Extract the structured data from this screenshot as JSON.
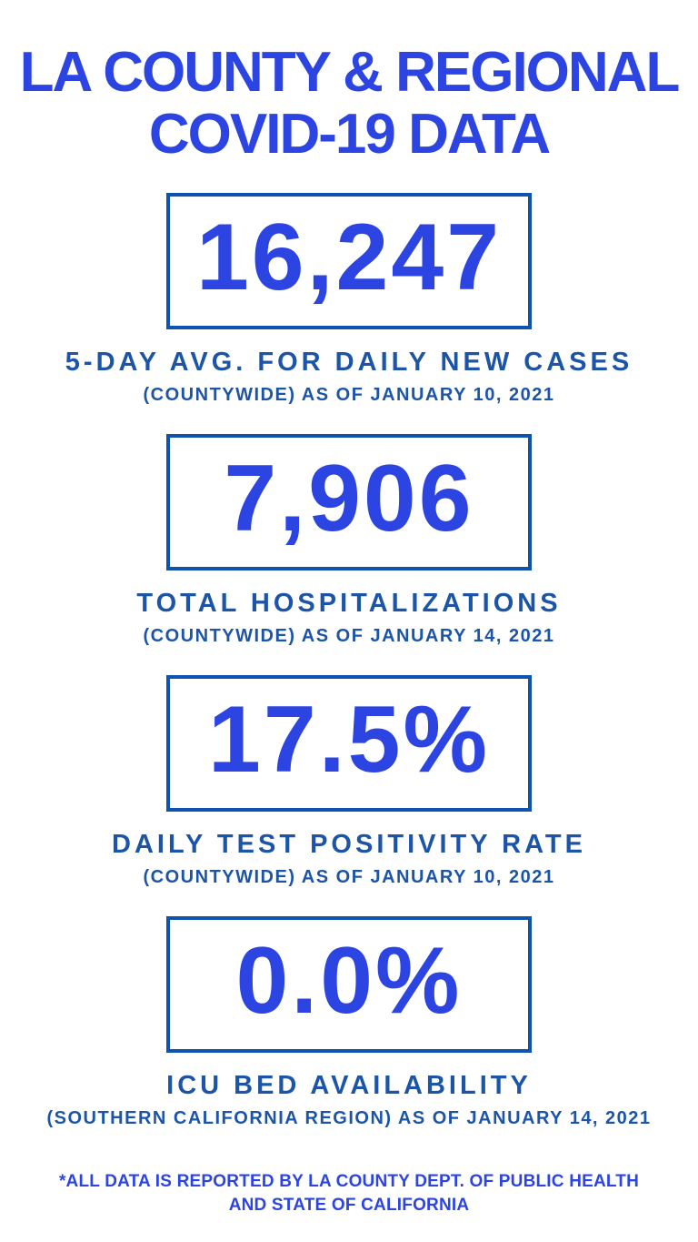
{
  "title": {
    "line1": "LA COUNTY & REGIONAL",
    "line2": "COVID-19 DATA"
  },
  "stats": [
    {
      "value": "16,247",
      "label": "5-DAY AVG. FOR DAILY NEW CASES",
      "detail": "(COUNTYWIDE) AS OF JANUARY 10, 2021"
    },
    {
      "value": "7,906",
      "label": "TOTAL HOSPITALIZATIONS",
      "detail": "(COUNTYWIDE) AS OF JANUARY 14, 2021"
    },
    {
      "value": "17.5%",
      "label": "DAILY TEST POSITIVITY RATE",
      "detail": "(COUNTYWIDE) AS OF JANUARY 10, 2021"
    },
    {
      "value": "0.0%",
      "label": "ICU BED AVAILABILITY",
      "detail": "(SOUTHERN CALIFORNIA REGION) AS OF JANUARY 14, 2021"
    }
  ],
  "footnote": {
    "line1": "*ALL DATA IS REPORTED BY LA COUNTY DEPT. OF PUBLIC HEALTH",
    "line2": "AND STATE OF CALIFORNIA"
  },
  "colors": {
    "background": "#ffffff",
    "bright_blue_accent": "#2b44e2",
    "box_border_blue": "#0e53ae",
    "label_dark_blue": "#1c55a8"
  },
  "chart_data": {
    "type": "table",
    "title": "LA COUNTY & REGIONAL COVID-19 DATA",
    "columns": [
      "metric",
      "value",
      "scope",
      "as_of_date"
    ],
    "rows": [
      [
        "5-DAY AVG. FOR DAILY NEW CASES",
        16247,
        "COUNTYWIDE",
        "JANUARY 10, 2021"
      ],
      [
        "TOTAL HOSPITALIZATIONS",
        7906,
        "COUNTYWIDE",
        "JANUARY 14, 2021"
      ],
      [
        "DAILY TEST POSITIVITY RATE",
        "17.5%",
        "COUNTYWIDE",
        "JANUARY 10, 2021"
      ],
      [
        "ICU BED AVAILABILITY",
        "0.0%",
        "SOUTHERN CALIFORNIA REGION",
        "JANUARY 14, 2021"
      ]
    ],
    "source_note": "*ALL DATA IS REPORTED BY LA COUNTY DEPT. OF PUBLIC HEALTH AND STATE OF CALIFORNIA"
  }
}
